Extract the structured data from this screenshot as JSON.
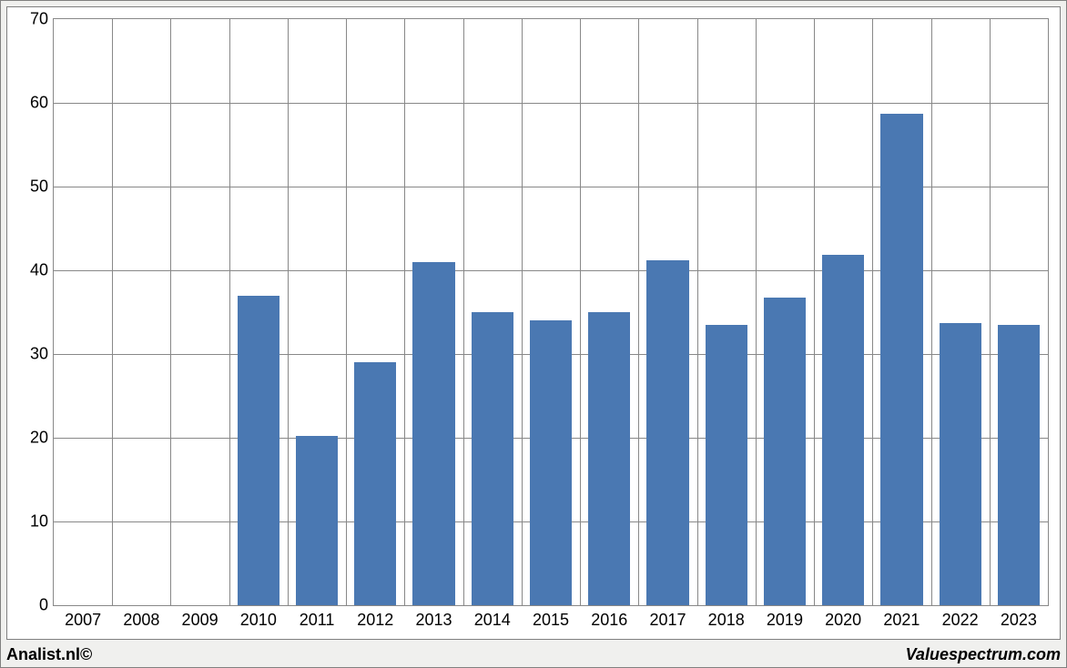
{
  "chart": {
    "type": "bar",
    "categories": [
      "2007",
      "2008",
      "2009",
      "2010",
      "2011",
      "2012",
      "2013",
      "2014",
      "2015",
      "2016",
      "2017",
      "2018",
      "2019",
      "2020",
      "2021",
      "2022",
      "2023"
    ],
    "values": [
      0,
      0,
      0,
      37,
      20.2,
      29,
      41,
      35,
      34,
      35,
      41.2,
      33.5,
      36.7,
      41.8,
      58.7,
      33.7,
      33.5
    ],
    "bar_color": "#4a78b2",
    "ylim": [
      0,
      70
    ],
    "ytick_step": 10,
    "y_ticks": [
      0,
      10,
      20,
      30,
      40,
      50,
      60,
      70
    ],
    "background_color": "#ffffff",
    "outer_background_color": "#f0f0ee",
    "grid_color": "#888888",
    "border_color": "#808080",
    "axis_fontsize": 18,
    "bar_width_ratio": 0.72
  },
  "footer": {
    "left": "Analist.nl©",
    "right": "Valuespectrum.com"
  }
}
